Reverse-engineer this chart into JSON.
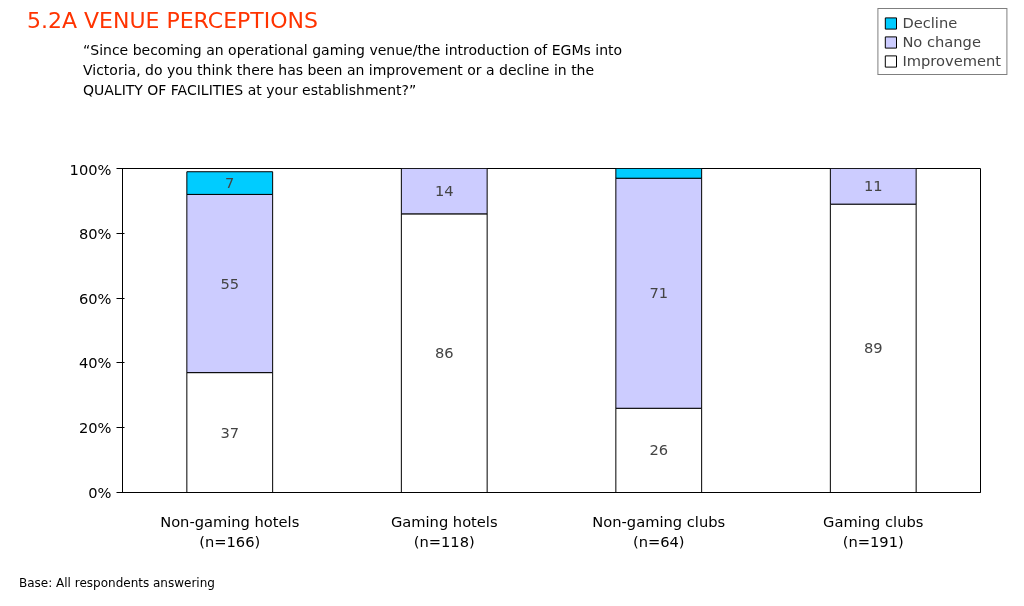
{
  "chart_data": {
    "type": "bar",
    "stacked": true,
    "title": "5.2A  VENUE PERCEPTIONS",
    "subtitle": "“Since becoming an operational gaming venue/the introduction of EGMs into\nVictoria, do you think there has been an improvement or a decline in the\nQUALITY OF FACILITIES at your establishment?”",
    "categories": [
      "Non-gaming hotels\n(n=166)",
      "Gaming hotels\n(n=118)",
      "Non-gaming clubs\n(n=64)",
      "Gaming clubs\n(n=191)"
    ],
    "series": [
      {
        "name": "Improvement",
        "color": "#ffffff",
        "values": [
          37,
          86,
          26,
          89
        ],
        "value_labels": [
          "37",
          "86",
          "26",
          "89"
        ]
      },
      {
        "name": "No change",
        "color": "#ccccff",
        "values": [
          55,
          14,
          71,
          11
        ],
        "value_labels": [
          "55",
          "14",
          "71",
          "11"
        ]
      },
      {
        "name": "Decline",
        "color": "#00ccff",
        "values": [
          7,
          null,
          3,
          null
        ],
        "value_labels": [
          "7",
          null,
          null,
          null
        ]
      }
    ],
    "ylim": [
      0,
      100
    ],
    "yticks": [
      {
        "value": 0,
        "label": "0%"
      },
      {
        "value": 20,
        "label": "20%"
      },
      {
        "value": 40,
        "label": "40%"
      },
      {
        "value": 60,
        "label": "60%"
      },
      {
        "value": 80,
        "label": "80%"
      },
      {
        "value": 100,
        "label": "100%"
      }
    ],
    "legend": "top right",
    "grid": false,
    "annotations": [
      "Base: All respondents answering"
    ]
  }
}
